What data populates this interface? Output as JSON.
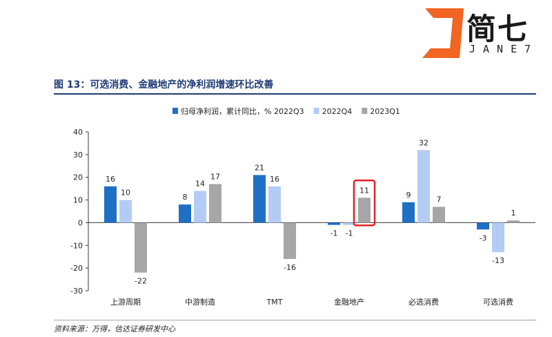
{
  "brand": {
    "name": "简七",
    "sub": "JANE7",
    "colors": {
      "orange": "#f26522",
      "dark": "#1a1a1a"
    }
  },
  "figure": {
    "title": "图 13：可选消费、金融地产的净利润增速环比改善",
    "source": "资料来源：万得，信达证券研发中心"
  },
  "chart_data": {
    "type": "bar",
    "legend_prefix": "归母净利润，累计同比，%",
    "legend_position": "top",
    "categories": [
      "上游周期",
      "中游制造",
      "TMT",
      "金融地产",
      "必选消费",
      "可选消费"
    ],
    "series": [
      {
        "name": "2022Q3",
        "color": "#1f6fc5",
        "values": [
          16,
          8,
          21,
          -1,
          9,
          -3
        ]
      },
      {
        "name": "2022Q4",
        "color": "#b4ccf5",
        "values": [
          10,
          14,
          16,
          -1,
          32,
          -13
        ]
      },
      {
        "name": "2023Q1",
        "color": "#a6a6a6",
        "values": [
          -22,
          17,
          -16,
          11,
          7,
          1
        ]
      }
    ],
    "y_ticks": [
      "40",
      "30",
      "20",
      "10",
      "0",
      "-10",
      "-20",
      "-30"
    ],
    "ylim": [
      -30,
      40
    ],
    "grid": false,
    "highlight": {
      "category": "金融地产",
      "series": "2023Q1",
      "color": "#e02020"
    }
  }
}
